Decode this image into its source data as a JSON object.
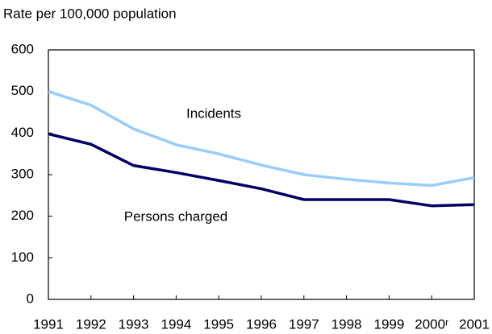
{
  "chart_data": {
    "type": "line",
    "y_axis_label": "Rate per 100,000 population",
    "categories": [
      "1991",
      "1992",
      "1993",
      "1994",
      "1995",
      "1996",
      "1997",
      "1998",
      "1999",
      "2000ʳ",
      "2001"
    ],
    "series": [
      {
        "name": "Incidents",
        "color": "#99ccff",
        "values": [
          500,
          467,
          410,
          372,
          350,
          323,
          300,
          289,
          280,
          274,
          293
        ]
      },
      {
        "name": "Persons charged",
        "color": "#000066",
        "values": [
          398,
          373,
          322,
          305,
          286,
          266,
          240,
          240,
          240,
          225,
          228
        ]
      }
    ],
    "ylim": [
      0,
      600
    ],
    "yticks": [
      0,
      100,
      200,
      300,
      400,
      500,
      600
    ]
  }
}
